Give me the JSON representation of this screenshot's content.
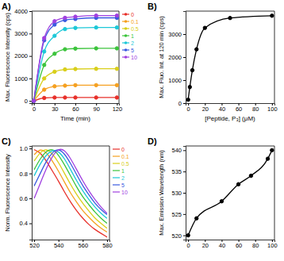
{
  "chart_data": [
    {
      "type": "line",
      "title": "A)",
      "x_label": "Time (min)",
      "y_label": "Max. Fluorescence Intensity (cps)",
      "x": [
        0,
        15,
        30,
        45,
        60,
        90,
        120
      ],
      "series": [
        {
          "name": "0",
          "color": "#e8302a",
          "values": [
            0,
            130,
            150,
            150,
            150,
            150,
            150
          ]
        },
        {
          "name": "0.1",
          "color": "#f5a020",
          "values": [
            0,
            500,
            650,
            680,
            700,
            700,
            700
          ]
        },
        {
          "name": "0.5",
          "color": "#d9cf1a",
          "values": [
            0,
            1000,
            1300,
            1400,
            1420,
            1430,
            1430
          ]
        },
        {
          "name": "1",
          "color": "#3cc43c",
          "values": [
            0,
            1600,
            2100,
            2300,
            2330,
            2340,
            2340
          ]
        },
        {
          "name": "2",
          "color": "#1cc8d8",
          "values": [
            0,
            2200,
            2900,
            3200,
            3250,
            3270,
            3270
          ]
        },
        {
          "name": "5",
          "color": "#3a5ae0",
          "values": [
            0,
            2700,
            3400,
            3600,
            3650,
            3700,
            3700
          ]
        },
        {
          "name": "10",
          "color": "#a040e0",
          "values": [
            0,
            2800,
            3550,
            3700,
            3750,
            3800,
            3800
          ]
        }
      ],
      "xlim": [
        -3,
        123
      ],
      "ylim": [
        -100,
        4000
      ],
      "xticks": [
        0,
        30,
        60,
        90,
        120
      ],
      "yticks": [
        0,
        1000,
        2000,
        3000,
        4000
      ],
      "marker": "circle",
      "legend": "right"
    },
    {
      "type": "line",
      "title": "B)",
      "x_label": "[Peptide, P₃] (μM)",
      "y_label": "Max. Fluo. Int. at 120 min (cps)",
      "x": [
        0,
        2,
        5,
        10,
        20,
        50,
        100
      ],
      "series": [
        {
          "color": "#000000",
          "values": [
            150,
            700,
            1430,
            2340,
            3270,
            3700,
            3800
          ]
        }
      ],
      "xlim": [
        -3,
        103
      ],
      "ylim": [
        0,
        4000
      ],
      "xticks": [
        0,
        20,
        40,
        60,
        80,
        100
      ],
      "yticks": [
        0,
        1000,
        2000,
        3000
      ],
      "marker": "circle"
    },
    {
      "type": "line",
      "y_label": "Norm. Fluorescence Intensity",
      "title": "C)",
      "x": [
        520,
        525,
        530,
        535,
        540,
        545,
        550,
        555,
        560,
        565,
        570,
        575,
        580
      ],
      "series": [
        {
          "name": "0",
          "color": "#e8302a",
          "values": [
            0.99,
            0.97,
            0.9,
            0.82,
            0.74,
            0.65,
            0.57,
            0.5,
            0.44,
            0.39,
            0.35,
            0.32,
            0.29
          ]
        },
        {
          "name": "0.1",
          "color": "#f5a020",
          "values": [
            0.95,
            1.0,
            0.97,
            0.9,
            0.82,
            0.73,
            0.64,
            0.57,
            0.5,
            0.45,
            0.4,
            0.36,
            0.33
          ]
        },
        {
          "name": "0.5",
          "color": "#d9cf1a",
          "values": [
            0.9,
            0.97,
            1.0,
            0.96,
            0.89,
            0.8,
            0.71,
            0.63,
            0.56,
            0.5,
            0.44,
            0.4,
            0.36
          ]
        },
        {
          "name": "1",
          "color": "#3cc43c",
          "values": [
            0.83,
            0.92,
            0.98,
            1.0,
            0.95,
            0.87,
            0.78,
            0.69,
            0.61,
            0.55,
            0.49,
            0.44,
            0.4
          ]
        },
        {
          "name": "2",
          "color": "#1cc8d8",
          "values": [
            0.78,
            0.88,
            0.95,
            0.99,
            0.98,
            0.92,
            0.83,
            0.74,
            0.66,
            0.59,
            0.53,
            0.48,
            0.44
          ]
        },
        {
          "name": "5",
          "color": "#3a5ae0",
          "values": [
            0.7,
            0.8,
            0.9,
            0.97,
            1.0,
            0.96,
            0.88,
            0.79,
            0.7,
            0.63,
            0.56,
            0.51,
            0.47
          ]
        },
        {
          "name": "10",
          "color": "#a040e0",
          "values": [
            0.6,
            0.72,
            0.84,
            0.94,
            1.0,
            0.99,
            0.92,
            0.83,
            0.74,
            0.66,
            0.59,
            0.53,
            0.48
          ]
        }
      ],
      "xlim": [
        518,
        582
      ],
      "ylim": [
        0.27,
        1.02
      ],
      "xticks": [
        520,
        540,
        560,
        580
      ],
      "yticks": [
        {
          "value": 0.4,
          "label": "0.4"
        },
        {
          "value": 0.6,
          "label": "0.6"
        },
        {
          "value": 0.8,
          "label": "0.8"
        },
        {
          "value": 1,
          "label": "1.0"
        }
      ],
      "legend": "right"
    },
    {
      "type": "line",
      "title": "D)",
      "y_label": "Max. Emission Wavelength (nm)",
      "x": [
        0,
        10,
        40,
        60,
        75,
        95,
        100
      ],
      "series": [
        {
          "color": "#000000",
          "values": [
            520,
            524,
            528,
            532,
            534,
            538,
            540
          ]
        }
      ],
      "xlim": [
        -3,
        103
      ],
      "ylim": [
        519,
        541
      ],
      "xticks": [
        0,
        20,
        40,
        60,
        80,
        100
      ],
      "yticks": [
        520,
        525,
        530,
        535,
        540
      ],
      "marker": "circle"
    }
  ]
}
